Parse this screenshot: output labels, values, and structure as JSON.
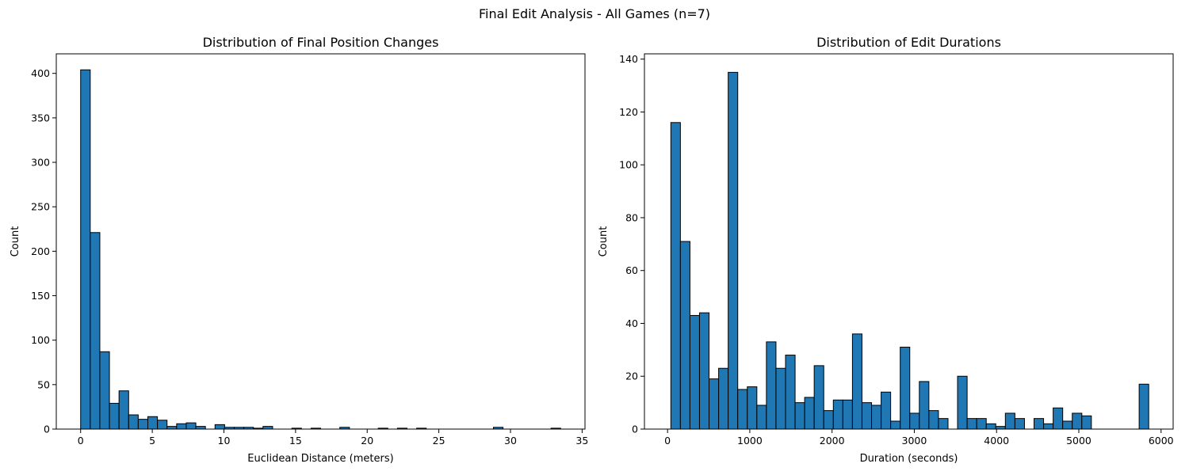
{
  "figure": {
    "suptitle": "Final Edit Analysis - All Games (n=7)"
  },
  "colors": {
    "bar_fill": "#1f77b4",
    "bar_edge": "#000000",
    "axes": "#000000",
    "background": "#ffffff"
  },
  "chart_data": [
    {
      "type": "bar",
      "subtype": "histogram",
      "title": "Distribution of Final Position Changes",
      "xlabel": "Euclidean Distance (meters)",
      "ylabel": "Count",
      "xlim": [
        -1.7,
        35.2
      ],
      "ylim": [
        0,
        422
      ],
      "xticks": [
        0,
        5,
        10,
        15,
        20,
        25,
        30,
        35
      ],
      "yticks": [
        0,
        50,
        100,
        150,
        200,
        250,
        300,
        350,
        400
      ],
      "grid": false,
      "bin_width": 0.67,
      "bin_starts": [
        0,
        0.67,
        1.34,
        2.01,
        2.68,
        3.35,
        4.02,
        4.69,
        5.36,
        6.03,
        6.7,
        7.37,
        8.04,
        8.71,
        9.38,
        10.05,
        10.72,
        11.39,
        12.06,
        12.73,
        13.4,
        14.07,
        14.74,
        15.41,
        16.08,
        16.75,
        17.42,
        18.09,
        18.76,
        19.43,
        20.1,
        20.77,
        21.44,
        22.11,
        22.78,
        23.45,
        24.12,
        24.79,
        25.46,
        26.13,
        26.8,
        27.47,
        28.14,
        28.81,
        29.48,
        30.15,
        30.82,
        31.49,
        32.16,
        32.83
      ],
      "values": [
        404,
        221,
        87,
        29,
        43,
        16,
        11,
        14,
        10,
        3,
        6,
        7,
        3,
        0,
        5,
        2,
        2,
        2,
        1,
        3,
        0,
        0,
        1,
        0,
        1,
        0,
        0,
        2,
        0,
        0,
        0,
        1,
        0,
        1,
        0,
        1,
        0,
        0,
        0,
        0,
        0,
        0,
        0,
        2,
        0,
        0,
        0,
        0,
        0,
        1
      ]
    },
    {
      "type": "bar",
      "subtype": "histogram",
      "title": "Distribution of Edit Durations",
      "xlabel": "Duration (seconds)",
      "ylabel": "Count",
      "xlim": [
        -281,
        6147
      ],
      "ylim": [
        0,
        142
      ],
      "xticks": [
        0,
        1000,
        2000,
        3000,
        4000,
        5000,
        6000
      ],
      "yticks": [
        0,
        20,
        40,
        60,
        80,
        100,
        120,
        140
      ],
      "grid": false,
      "bin_width": 116.2,
      "bin_starts": [
        40,
        156.2,
        272.4,
        388.6,
        504.8,
        621,
        737.2,
        853.4,
        969.6,
        1085.8,
        1202,
        1318.2,
        1434.4,
        1550.6,
        1666.8,
        1783,
        1899.2,
        2015.4,
        2131.6,
        2247.8,
        2364,
        2480.2,
        2596.4,
        2712.6,
        2828.8,
        2945,
        3061.2,
        3177.4,
        3293.6,
        3409.8,
        3526,
        3642.2,
        3758.4,
        3874.6,
        3990.8,
        4107,
        4223.2,
        4339.4,
        4455.6,
        4571.8,
        4688,
        4804.2,
        4920.4,
        5036.6,
        5152.8,
        5269,
        5385.2,
        5501.4,
        5617.6,
        5733.8
      ],
      "values": [
        116,
        71,
        43,
        44,
        19,
        23,
        135,
        15,
        16,
        9,
        33,
        23,
        28,
        10,
        12,
        24,
        7,
        11,
        11,
        36,
        10,
        9,
        14,
        3,
        31,
        6,
        18,
        7,
        4,
        0,
        20,
        4,
        4,
        2,
        1,
        6,
        4,
        0,
        4,
        2,
        8,
        3,
        6,
        5,
        0,
        0,
        0,
        0,
        0,
        17
      ]
    }
  ]
}
